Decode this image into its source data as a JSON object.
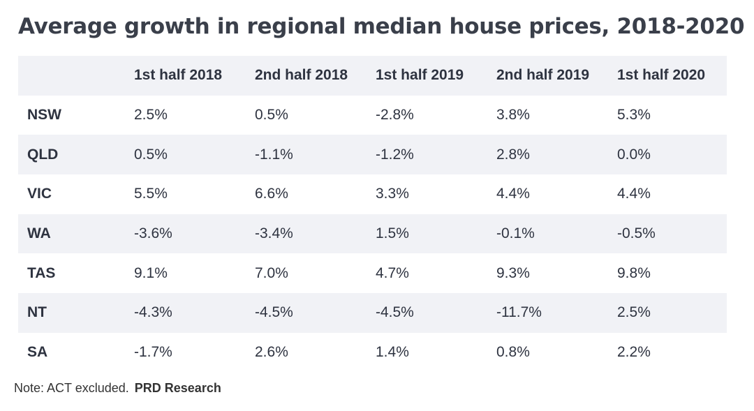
{
  "title": "Average growth in regional median house prices, 2018-2020",
  "note": {
    "text": "Note: ACT excluded.",
    "source": "PRD Research"
  },
  "colors": {
    "stripe": "#f1f2f6",
    "text": "#2e3340",
    "title": "#3a3f4a"
  },
  "chart_data": {
    "type": "table",
    "title": "Average growth in regional median house prices, 2018-2020",
    "columns": [
      "",
      "1st half 2018",
      "2nd half 2018",
      "1st half 2019",
      "2nd half 2019",
      "1st half 2020"
    ],
    "rows": [
      {
        "region": "NSW",
        "values": [
          "2.5%",
          "0.5%",
          "-2.8%",
          "3.8%",
          "5.3%"
        ]
      },
      {
        "region": "QLD",
        "values": [
          "0.5%",
          "-1.1%",
          "-1.2%",
          "2.8%",
          "0.0%"
        ]
      },
      {
        "region": "VIC",
        "values": [
          "5.5%",
          "6.6%",
          "3.3%",
          "4.4%",
          "4.4%"
        ]
      },
      {
        "region": "WA",
        "values": [
          "-3.6%",
          "-3.4%",
          "1.5%",
          "-0.1%",
          "-0.5%"
        ]
      },
      {
        "region": "TAS",
        "values": [
          "9.1%",
          "7.0%",
          "4.7%",
          "9.3%",
          "9.8%"
        ]
      },
      {
        "region": "NT",
        "values": [
          "-4.3%",
          "-4.5%",
          "-4.5%",
          "-11.7%",
          "2.5%"
        ]
      },
      {
        "region": "SA",
        "values": [
          "-1.7%",
          "2.6%",
          "1.4%",
          "0.8%",
          "2.2%"
        ]
      }
    ]
  }
}
